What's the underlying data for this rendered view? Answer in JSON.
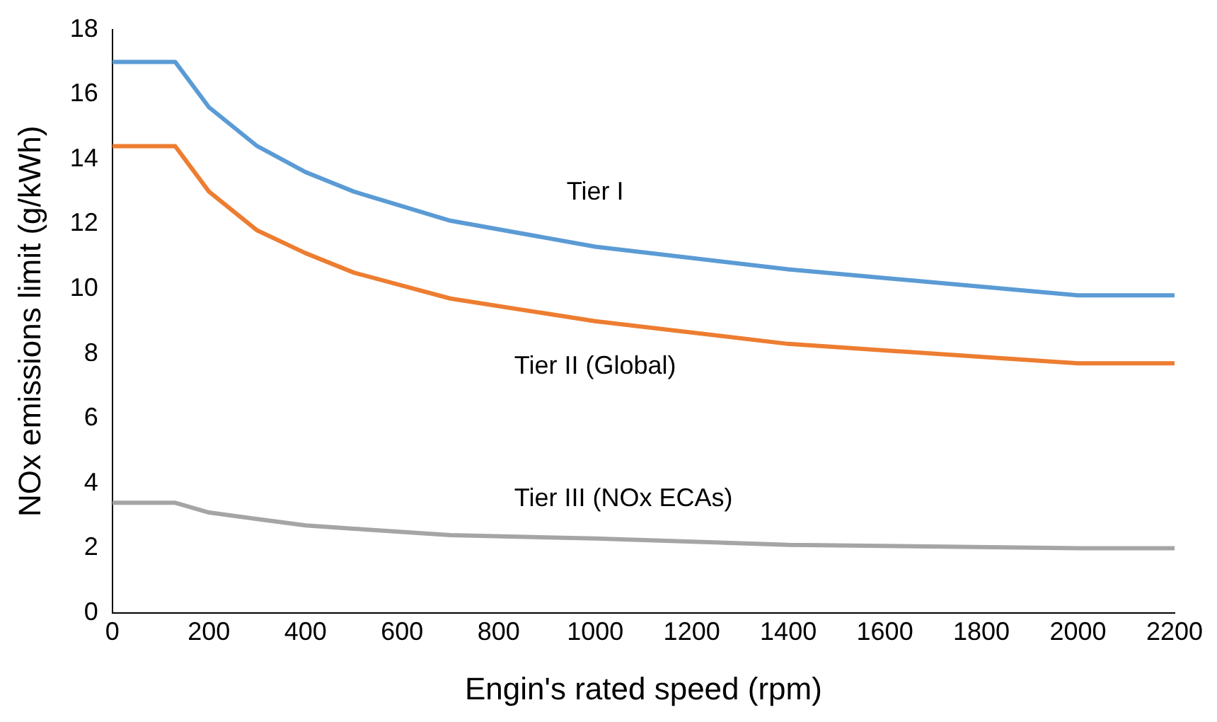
{
  "chart_data": {
    "type": "line",
    "xlabel": "Engin's rated speed (rpm)",
    "ylabel": "NOx emissions limit (g/kWh)",
    "xlim": [
      0,
      2200
    ],
    "xticks": [
      0,
      200,
      400,
      600,
      800,
      1000,
      1200,
      1400,
      1600,
      1800,
      2000,
      2200
    ],
    "ylim": [
      0,
      18
    ],
    "yticks": [
      0,
      2,
      4,
      6,
      8,
      10,
      12,
      14,
      16,
      18
    ],
    "grid": false,
    "legend": false,
    "marker": "none",
    "line_style": "solid",
    "series": [
      {
        "name": "Tier I",
        "color": "#5b9bd5",
        "x": [
          0,
          130,
          200,
          300,
          400,
          500,
          700,
          1000,
          1400,
          2000,
          2200
        ],
        "values": [
          17.0,
          17.0,
          15.6,
          14.4,
          13.6,
          13.0,
          12.1,
          11.3,
          10.6,
          9.8,
          9.8
        ]
      },
      {
        "name": "Tier II (Global)",
        "color": "#ed7d31",
        "x": [
          0,
          130,
          200,
          300,
          400,
          500,
          700,
          1000,
          1400,
          2000,
          2200
        ],
        "values": [
          14.4,
          14.4,
          13.0,
          11.8,
          11.1,
          10.5,
          9.7,
          9.0,
          8.3,
          7.7,
          7.7
        ]
      },
      {
        "name": "Tier III (NOx ECAs)",
        "color": "#a5a5a5",
        "x": [
          0,
          130,
          200,
          300,
          400,
          500,
          700,
          1000,
          1400,
          2000,
          2200
        ],
        "values": [
          3.4,
          3.4,
          3.1,
          2.9,
          2.7,
          2.6,
          2.4,
          2.3,
          2.1,
          2.0,
          2.0
        ]
      }
    ]
  }
}
